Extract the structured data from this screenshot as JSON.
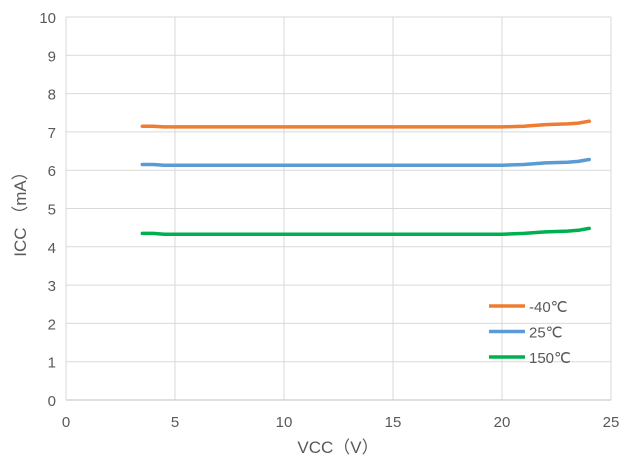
{
  "chart_data": {
    "type": "line",
    "title": "",
    "xlabel": "VCC（V）",
    "ylabel": "ICC （mA）",
    "xlim": [
      0,
      25
    ],
    "ylim": [
      0,
      10
    ],
    "xticks": [
      0,
      5,
      10,
      15,
      20,
      25
    ],
    "yticks": [
      0,
      1,
      2,
      3,
      4,
      5,
      6,
      7,
      8,
      9,
      10
    ],
    "grid": true,
    "legend_position": "bottom-right",
    "x": [
      3.5,
      4,
      4.5,
      5,
      10,
      15,
      20,
      21,
      22,
      23,
      23.5,
      24
    ],
    "series": [
      {
        "name": "-40℃",
        "color": "#ED7D31",
        "values": [
          7.15,
          7.15,
          7.13,
          7.13,
          7.13,
          7.13,
          7.13,
          7.15,
          7.19,
          7.21,
          7.23,
          7.28
        ]
      },
      {
        "name": "25℃",
        "color": "#5B9BD5",
        "values": [
          6.15,
          6.15,
          6.13,
          6.13,
          6.13,
          6.13,
          6.13,
          6.15,
          6.19,
          6.21,
          6.23,
          6.28
        ]
      },
      {
        "name": "150℃",
        "color": "#00B050",
        "values": [
          4.35,
          4.35,
          4.33,
          4.33,
          4.33,
          4.33,
          4.33,
          4.35,
          4.39,
          4.41,
          4.43,
          4.48
        ]
      }
    ]
  }
}
